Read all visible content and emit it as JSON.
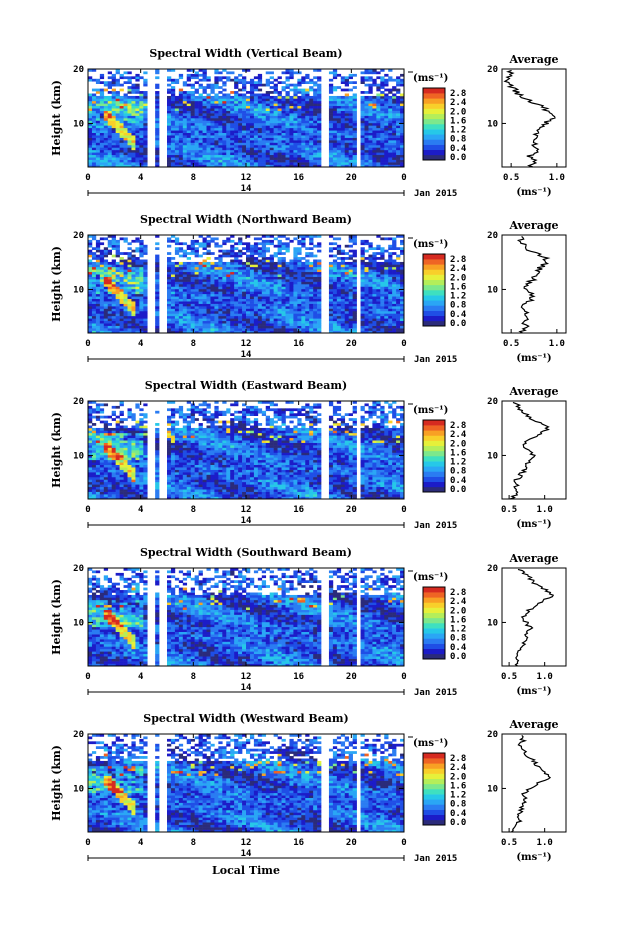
{
  "chart_data": [
    {
      "type": "heatmap",
      "title": "Spectral Width (Vertical Beam)",
      "ylabel": "Height (km)",
      "xlabel": "",
      "xticks": [
        "0",
        "4",
        "8",
        "12",
        "16",
        "20",
        "0"
      ],
      "yticks": [
        "10",
        "20"
      ],
      "xlim": [
        0,
        24
      ],
      "ylim": [
        2,
        20
      ],
      "date_label": "14",
      "month_label": "Jan 2015",
      "colorbar": {
        "unit": "(ms⁻¹)",
        "ticks": [
          "2.8",
          "2.4",
          "2.0",
          "1.6",
          "1.2",
          "0.8",
          "0.4",
          "0.0"
        ],
        "range": [
          0,
          2.8
        ]
      },
      "data_gaps_hours": [
        [
          4.6,
          4.9
        ],
        [
          5.6,
          5.8
        ],
        [
          17.9,
          18.1
        ],
        [
          20.4,
          20.6
        ]
      ],
      "profile": {
        "title": "Average",
        "xlabel": "(ms⁻¹)",
        "xticks": [
          "0.5",
          "1.0"
        ],
        "yticks": [
          "10",
          "20"
        ],
        "xlim": [
          0.4,
          1.1
        ],
        "heights": [
          2,
          3,
          4,
          5,
          6,
          7,
          8,
          9,
          10,
          11,
          12,
          13,
          14,
          15,
          16,
          17,
          18,
          19,
          20
        ],
        "values": [
          0.72,
          0.75,
          0.7,
          0.8,
          0.76,
          0.72,
          0.78,
          0.82,
          0.88,
          0.96,
          0.9,
          0.86,
          0.72,
          0.6,
          0.55,
          0.5,
          0.46,
          0.48,
          0.52
        ]
      }
    },
    {
      "type": "heatmap",
      "title": "Spectral Width (Northward Beam)",
      "ylabel": "Height (km)",
      "xlabel": "",
      "xticks": [
        "0",
        "4",
        "8",
        "12",
        "16",
        "20",
        "0"
      ],
      "yticks": [
        "10",
        "20"
      ],
      "xlim": [
        0,
        24
      ],
      "ylim": [
        2,
        20
      ],
      "date_label": "14",
      "month_label": "Jan 2015",
      "colorbar": {
        "unit": "(ms⁻¹)",
        "ticks": [
          "2.8",
          "2.4",
          "2.0",
          "1.6",
          "1.2",
          "0.8",
          "0.4",
          "0.0"
        ],
        "range": [
          0,
          2.8
        ]
      },
      "data_gaps_hours": [
        [
          4.6,
          4.9
        ],
        [
          5.6,
          5.8
        ],
        [
          17.9,
          18.1
        ],
        [
          20.4,
          20.6
        ]
      ],
      "profile": {
        "title": "Average",
        "xlabel": "(ms⁻¹)",
        "xticks": [
          "0.5",
          "1.0"
        ],
        "yticks": [
          "10",
          "20"
        ],
        "xlim": [
          0.4,
          1.1
        ],
        "heights": [
          2,
          3,
          4,
          5,
          6,
          7,
          8,
          9,
          10,
          11,
          12,
          13,
          14,
          15,
          16,
          17,
          18,
          19,
          20
        ],
        "values": [
          0.62,
          0.68,
          0.6,
          0.7,
          0.66,
          0.64,
          0.7,
          0.72,
          0.66,
          0.7,
          0.74,
          0.78,
          0.82,
          0.9,
          0.86,
          0.72,
          0.66,
          0.6,
          0.64
        ]
      }
    },
    {
      "type": "heatmap",
      "title": "Spectral Width (Eastward Beam)",
      "ylabel": "Height (km)",
      "xlabel": "",
      "xticks": [
        "0",
        "4",
        "8",
        "12",
        "16",
        "20",
        "0"
      ],
      "yticks": [
        "10",
        "20"
      ],
      "xlim": [
        0,
        24
      ],
      "ylim": [
        2,
        20
      ],
      "date_label": "14",
      "month_label": "Jan 2015",
      "colorbar": {
        "unit": "(ms⁻¹)",
        "ticks": [
          "2.8",
          "2.4",
          "2.0",
          "1.6",
          "1.2",
          "0.8",
          "0.4",
          "0.0"
        ],
        "range": [
          0,
          2.8
        ]
      },
      "data_gaps_hours": [
        [
          4.6,
          4.9
        ],
        [
          5.6,
          5.8
        ],
        [
          17.9,
          18.1
        ],
        [
          20.4,
          20.6
        ]
      ],
      "profile": {
        "title": "Average",
        "xlabel": "(ms⁻¹)",
        "xticks": [
          "0.5",
          "1.0"
        ],
        "yticks": [
          "10",
          "20"
        ],
        "xlim": [
          0.4,
          1.3
        ],
        "heights": [
          2,
          3,
          4,
          5,
          6,
          7,
          8,
          9,
          10,
          11,
          12,
          13,
          14,
          15,
          16,
          17,
          18,
          19,
          20
        ],
        "values": [
          0.55,
          0.6,
          0.62,
          0.58,
          0.64,
          0.7,
          0.72,
          0.78,
          0.85,
          0.76,
          0.68,
          0.8,
          0.96,
          1.05,
          0.92,
          0.78,
          0.7,
          0.62,
          0.58
        ]
      }
    },
    {
      "type": "heatmap",
      "title": "Spectral Width (Southward Beam)",
      "ylabel": "Height (km)",
      "xlabel": "",
      "xticks": [
        "0",
        "4",
        "8",
        "12",
        "16",
        "20",
        "0"
      ],
      "yticks": [
        "10",
        "20"
      ],
      "xlim": [
        0,
        24
      ],
      "ylim": [
        2,
        20
      ],
      "date_label": "14",
      "month_label": "Jan 2015",
      "colorbar": {
        "unit": "(ms⁻¹)",
        "ticks": [
          "2.8",
          "2.4",
          "2.0",
          "1.6",
          "1.2",
          "0.8",
          "0.4",
          "0.0"
        ],
        "range": [
          0,
          2.8
        ]
      },
      "data_gaps_hours": [
        [
          4.6,
          4.9
        ],
        [
          5.6,
          5.8
        ],
        [
          17.9,
          18.1
        ],
        [
          20.4,
          20.6
        ]
      ],
      "profile": {
        "title": "Average",
        "xlabel": "(ms⁻¹)",
        "xticks": [
          "0.5",
          "1.0"
        ],
        "yticks": [
          "10",
          "20"
        ],
        "xlim": [
          0.4,
          1.3
        ],
        "heights": [
          2,
          3,
          4,
          5,
          6,
          7,
          8,
          9,
          10,
          11,
          12,
          13,
          14,
          15,
          16,
          17,
          18,
          19,
          20
        ],
        "values": [
          0.58,
          0.62,
          0.6,
          0.66,
          0.7,
          0.72,
          0.76,
          0.8,
          0.74,
          0.7,
          0.76,
          0.86,
          0.98,
          1.1,
          1.02,
          0.88,
          0.8,
          0.7,
          0.64
        ]
      }
    },
    {
      "type": "heatmap",
      "title": "Spectral Width (Westward Beam)",
      "ylabel": "Height (km)",
      "xlabel": "Local Time",
      "xticks": [
        "0",
        "4",
        "8",
        "12",
        "16",
        "20",
        "0"
      ],
      "yticks": [
        "10",
        "20"
      ],
      "xlim": [
        0,
        24
      ],
      "ylim": [
        2,
        20
      ],
      "date_label": "14",
      "month_label": "Jan 2015",
      "colorbar": {
        "unit": "(ms⁻¹)",
        "ticks": [
          "2.8",
          "2.4",
          "2.0",
          "1.6",
          "1.2",
          "0.8",
          "0.4",
          "0.0"
        ],
        "range": [
          0,
          2.8
        ]
      },
      "data_gaps_hours": [
        [
          4.6,
          4.9
        ],
        [
          5.6,
          5.8
        ],
        [
          17.9,
          18.1
        ],
        [
          20.4,
          20.6
        ]
      ],
      "profile": {
        "title": "Average",
        "xlabel": "(ms⁻¹)",
        "xticks": [
          "0.5",
          "1.0"
        ],
        "yticks": [
          "10",
          "20"
        ],
        "xlim": [
          0.4,
          1.3
        ],
        "heights": [
          2,
          3,
          4,
          5,
          6,
          7,
          8,
          9,
          10,
          11,
          12,
          13,
          14,
          15,
          16,
          17,
          18,
          19,
          20
        ],
        "values": [
          0.56,
          0.6,
          0.64,
          0.62,
          0.68,
          0.7,
          0.74,
          0.72,
          0.78,
          0.92,
          1.08,
          1.02,
          0.9,
          0.84,
          0.76,
          0.72,
          0.66,
          0.7,
          0.62
        ]
      }
    }
  ]
}
